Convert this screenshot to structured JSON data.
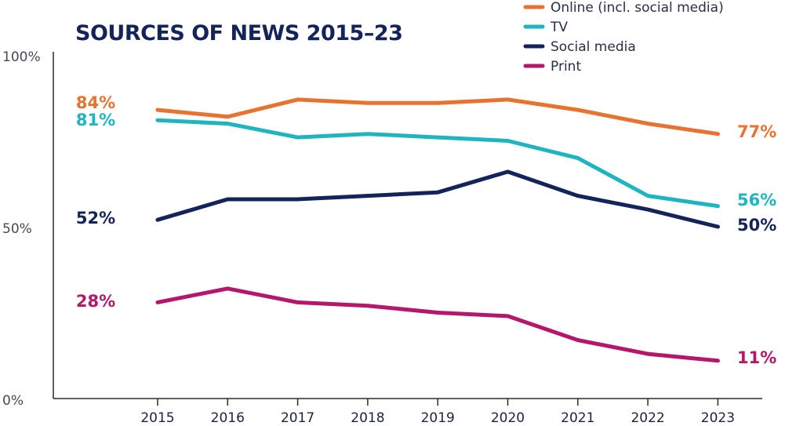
{
  "chart_data": {
    "type": "line",
    "title": "SOURCES OF NEWS 2015–23",
    "x": [
      "2015",
      "2016",
      "2017",
      "2018",
      "2019",
      "2020",
      "2021",
      "2022",
      "2023"
    ],
    "ylim": [
      0,
      100
    ],
    "yticks": [
      0,
      50,
      100
    ],
    "ytick_labels": [
      "0%",
      "50%",
      "100%"
    ],
    "legend_position": "top-right",
    "series": [
      {
        "name": "Online (incl. social media)",
        "color": "#e87330",
        "values": [
          84,
          82,
          87,
          86,
          86,
          87,
          84,
          80,
          77
        ],
        "start_label": "84%",
        "end_label": "77%"
      },
      {
        "name": "TV",
        "color": "#1fb5c0",
        "values": [
          81,
          80,
          76,
          77,
          76,
          75,
          70,
          59,
          56
        ],
        "start_label": "81%",
        "end_label": "56%"
      },
      {
        "name": "Social media",
        "color": "#14235a",
        "values": [
          52,
          58,
          58,
          59,
          60,
          66,
          59,
          55,
          50
        ],
        "start_label": "52%",
        "end_label": "50%"
      },
      {
        "name": "Print",
        "color": "#b5186a",
        "values": [
          28,
          32,
          28,
          27,
          25,
          24,
          17,
          13,
          11
        ],
        "start_label": "28%",
        "end_label": "11%"
      }
    ]
  }
}
